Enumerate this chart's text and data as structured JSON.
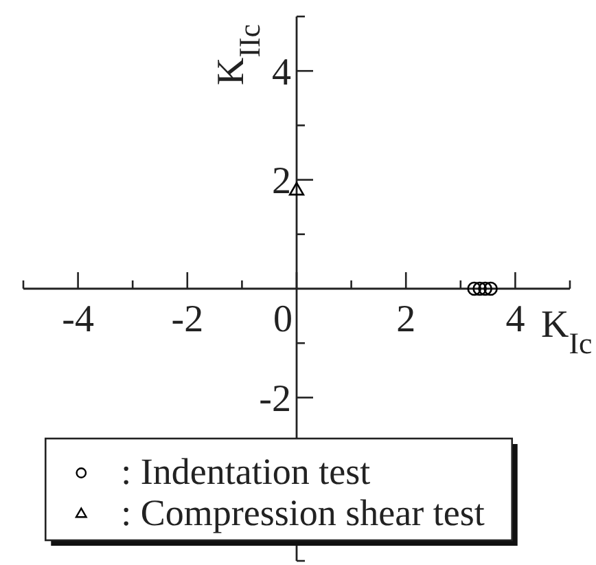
{
  "chart_data": {
    "type": "scatter",
    "xlabel": "K$_{Ic}$",
    "ylabel": "K$_{IIc}$",
    "xlim": [
      -5,
      5
    ],
    "ylim": [
      -5,
      5
    ],
    "xticks": [
      {
        "value": -5,
        "label": null
      },
      -4,
      {
        "value": -3,
        "label": null
      },
      -2,
      {
        "value": -1,
        "label": null
      },
      0,
      {
        "value": 1,
        "label": null
      },
      2,
      {
        "value": 3,
        "label": null
      },
      4,
      {
        "value": 5,
        "label": null
      }
    ],
    "yticks": [
      {
        "value": -5,
        "label": null
      },
      -2,
      {
        "value": -1,
        "label": null
      },
      {
        "value": 1,
        "label": null
      },
      2,
      {
        "value": 3,
        "label": null
      },
      4,
      {
        "value": 5,
        "label": null
      }
    ],
    "series": [
      {
        "name": ": Indentation test",
        "color": "#000000",
        "marker": "circle",
        "x": [
          3.25,
          3.35,
          3.45,
          3.55
        ],
        "values": [
          0,
          0,
          0,
          0
        ]
      },
      {
        "name": ": Compression shear test",
        "color": "#000000",
        "marker": "triangle",
        "x": [
          0
        ],
        "values": [
          1.8
        ]
      }
    ],
    "legend": "bottom",
    "grid": false
  }
}
